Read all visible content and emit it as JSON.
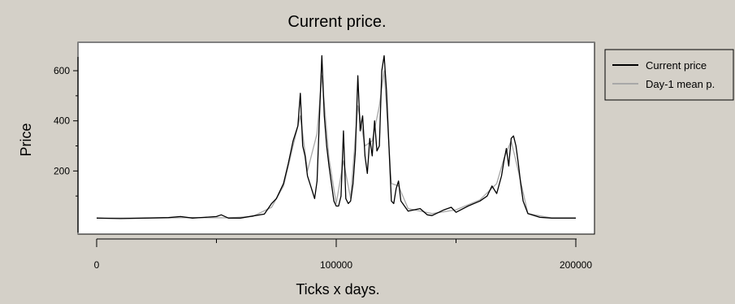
{
  "chart_data": {
    "type": "line",
    "title": "Current price.",
    "xlabel": "Ticks x days.",
    "ylabel": "Price",
    "xlim": [
      0,
      205000
    ],
    "ylim": [
      0,
      680
    ],
    "x_ticks": [
      0,
      100000,
      200000
    ],
    "y_ticks": [
      200,
      400,
      600
    ],
    "grid": false,
    "legend_placement": "right",
    "colors": {
      "background": "#d4d0c8",
      "plot_area": "#ffffff",
      "current_price": "#000000",
      "mean_price": "#a8a8a8"
    },
    "series": [
      {
        "name": "Current price",
        "x": [
          0,
          10000,
          20000,
          30000,
          35000,
          40000,
          45000,
          50000,
          52000,
          55000,
          60000,
          65000,
          70000,
          73000,
          75000,
          78000,
          80000,
          82000,
          84000,
          85000,
          86000,
          87000,
          88000,
          90000,
          91000,
          92000,
          93000,
          94000,
          95000,
          96000,
          97000,
          99000,
          100000,
          101000,
          102000,
          103000,
          104000,
          105000,
          106000,
          107000,
          108000,
          109000,
          110000,
          111000,
          112000,
          113000,
          114000,
          115000,
          116000,
          117000,
          118000,
          119000,
          120000,
          121000,
          122000,
          123000,
          124000,
          125000,
          126000,
          127000,
          130000,
          135000,
          138000,
          140000,
          145000,
          148000,
          150000,
          155000,
          160000,
          163000,
          165000,
          167000,
          169000,
          170000,
          171000,
          172000,
          173000,
          174000,
          175000,
          176000,
          177000,
          178000,
          180000,
          185000,
          190000,
          200000
        ],
        "values": [
          12,
          10,
          12,
          14,
          18,
          12,
          15,
          18,
          25,
          12,
          12,
          20,
          28,
          70,
          90,
          150,
          230,
          320,
          380,
          510,
          300,
          260,
          180,
          120,
          90,
          160,
          420,
          660,
          420,
          300,
          220,
          80,
          60,
          60,
          100,
          360,
          90,
          70,
          80,
          150,
          280,
          580,
          360,
          420,
          260,
          190,
          330,
          260,
          400,
          280,
          300,
          600,
          660,
          520,
          300,
          80,
          70,
          130,
          160,
          80,
          40,
          50,
          25,
          22,
          45,
          55,
          35,
          60,
          80,
          100,
          140,
          110,
          180,
          240,
          290,
          220,
          330,
          340,
          300,
          230,
          150,
          80,
          30,
          15,
          12,
          12
        ]
      },
      {
        "name": "Day-1 mean p.",
        "x": [
          0,
          20000,
          40000,
          55000,
          65000,
          73000,
          78000,
          82000,
          85000,
          88000,
          92000,
          94000,
          97000,
          100000,
          103000,
          106000,
          109000,
          112000,
          115000,
          118000,
          120000,
          123000,
          126000,
          130000,
          140000,
          150000,
          160000,
          167000,
          170000,
          173000,
          176000,
          180000,
          190000,
          200000
        ],
        "values": [
          12,
          12,
          14,
          13,
          18,
          55,
          140,
          300,
          420,
          200,
          350,
          580,
          250,
          70,
          240,
          90,
          460,
          300,
          320,
          460,
          600,
          150,
          140,
          50,
          30,
          45,
          85,
          150,
          250,
          320,
          200,
          30,
          12,
          12
        ]
      }
    ]
  }
}
